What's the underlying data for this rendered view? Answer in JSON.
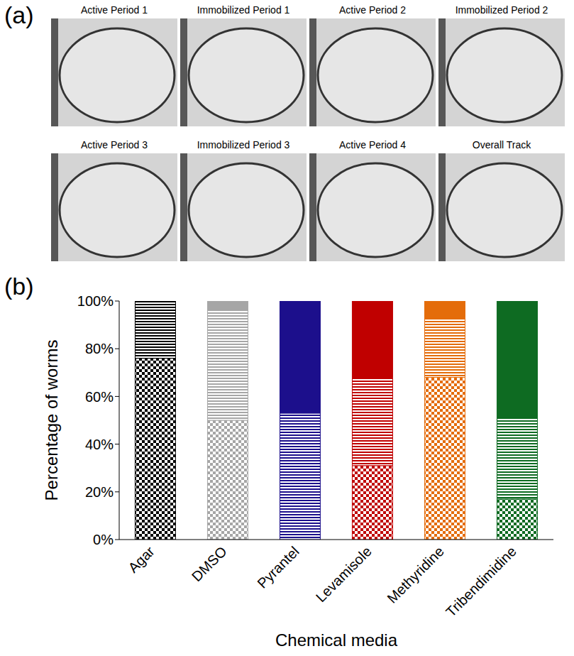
{
  "panel_labels": [
    "(a)",
    "(b)"
  ],
  "images": {
    "titles": [
      "Active Period 1",
      "Immobilized Period 1",
      "Active Period 2",
      "Immobilized Period 2",
      "Active Period 3",
      "Immobilized Period 3",
      "Active Period 4",
      "Overall Track"
    ]
  },
  "chart_data": {
    "type": "bar",
    "stacked": true,
    "xlabel": "Chemical media",
    "ylabel": "Percentage of worms",
    "categories": [
      "Agar",
      "DMSO",
      "Pyrantel",
      "Levamisole",
      "Methyridine",
      "Tribendimidine"
    ],
    "ylim": [
      0,
      100
    ],
    "yticks": [
      {
        "value": 0,
        "label": "0%"
      },
      {
        "value": 20,
        "label": "20%"
      },
      {
        "value": 40,
        "label": "40%"
      },
      {
        "value": 60,
        "label": "60%"
      },
      {
        "value": 80,
        "label": "80%"
      },
      {
        "value": 100,
        "label": "100%"
      }
    ],
    "grid": false,
    "series": [
      {
        "colors": [
          "#000000",
          "#a6a6a6",
          "#1c0f8c",
          "#c00000",
          "#e46c0a",
          "#0e6b22"
        ],
        "values": [
          76,
          50,
          0,
          31,
          68,
          17
        ]
      },
      {
        "colors": [
          "#000000",
          "#a6a6a6",
          "#1c0f8c",
          "#c00000",
          "#e46c0a",
          "#0e6b22"
        ],
        "values": [
          24,
          46,
          53,
          37,
          25,
          34
        ]
      },
      {
        "colors": [
          "#000000",
          "#a6a6a6",
          "#1c0f8c",
          "#c00000",
          "#e46c0a",
          "#0e6b22"
        ],
        "values": [
          0,
          4,
          47,
          32,
          7,
          49
        ]
      }
    ]
  }
}
